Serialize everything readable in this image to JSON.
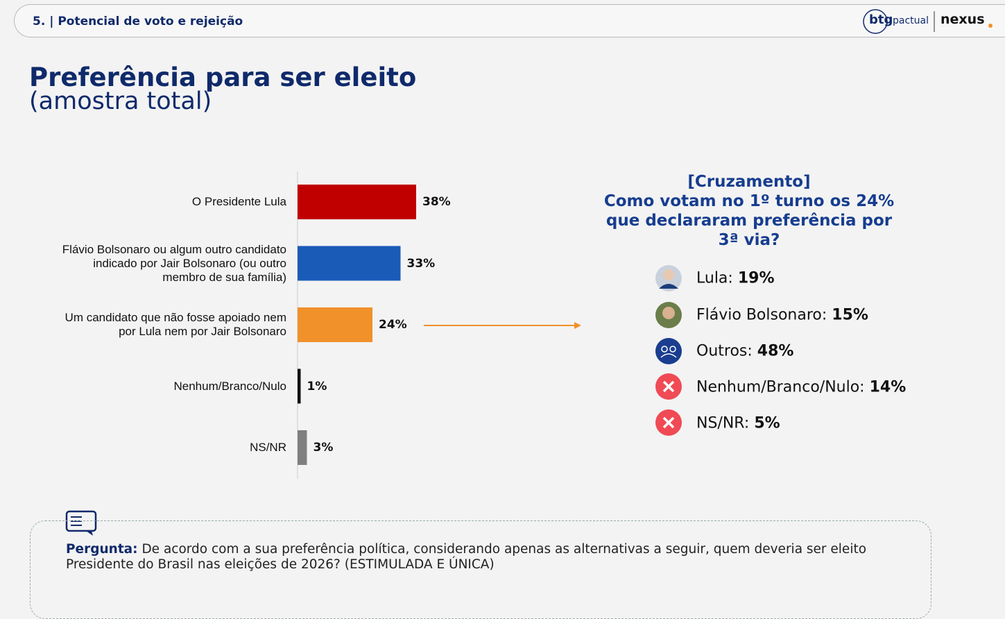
{
  "header": {
    "title": "5. | Potencial de voto e rejeição",
    "logo_btg": "btg",
    "logo_pactual": "pactual",
    "logo_nexus": "nexus"
  },
  "title": "Preferência para ser eleito",
  "subtitle": "(amostra total)",
  "chart_data": {
    "type": "bar",
    "orientation": "horizontal",
    "categories": [
      "O Presidente Lula",
      "Flávio Bolsonaro ou algum outro candidato indicado por Jair Bolsonaro (ou outro membro de sua família)",
      "Um candidato que não fosse apoiado nem por Lula nem por Jair Bolsonaro",
      "Nenhum/Branco/Nulo",
      "NS/NR"
    ],
    "values": [
      38,
      33,
      24,
      1,
      3
    ],
    "value_labels": [
      "38%",
      "33%",
      "24%",
      "1%",
      "3%"
    ],
    "colors": [
      "#c00000",
      "#1a5bb8",
      "#f0912a",
      "#111111",
      "#7f7f7f"
    ]
  },
  "crosstab": {
    "heading": "[Cruzamento]",
    "question": "Como votam no 1º turno os 24% que declararam preferência por 3ª via?",
    "items": [
      {
        "label": "Lula:",
        "value": "19%"
      },
      {
        "label": "Flávio Bolsonaro:",
        "value": "15%"
      },
      {
        "label": "Outros:",
        "value": "48%"
      },
      {
        "label": "Nenhum/Branco/Nulo:",
        "value": "14%"
      },
      {
        "label": "NS/NR:",
        "value": "5%"
      }
    ]
  },
  "question": {
    "label": "Pergunta:",
    "text": "De acordo com a sua preferência política, considerando apenas as alternativas a seguir, quem deveria ser eleito Presidente do Brasil nas eleições de 2026? (ESTIMULADA E ÚNICA)"
  }
}
